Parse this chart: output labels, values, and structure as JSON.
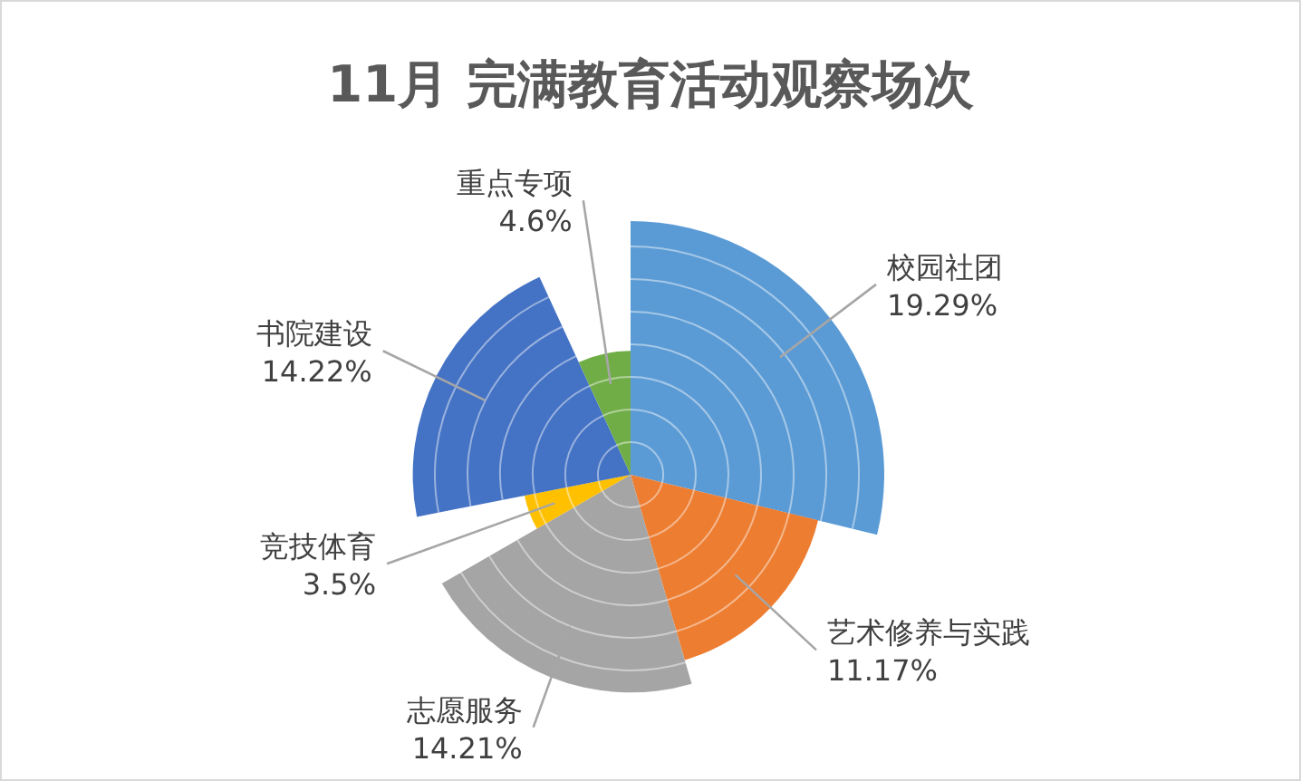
{
  "chart_data": {
    "type": "other",
    "title": "11月 完满教育活动观察场次",
    "categories": [
      "校园社团",
      "艺术修养与实践",
      "志愿服务",
      "竞技体育",
      "书院建设",
      "重点专项"
    ],
    "values": [
      19.29,
      11.17,
      14.21,
      3.5,
      14.22,
      4.6
    ],
    "value_labels": [
      "19.29%",
      "11.17%",
      "14.21%",
      "3.5%",
      "14.22%",
      "4.6%"
    ],
    "colors": [
      "#5b9bd5",
      "#ed7d31",
      "#a5a5a5",
      "#ffc000",
      "#4472c4",
      "#70ad47"
    ]
  }
}
